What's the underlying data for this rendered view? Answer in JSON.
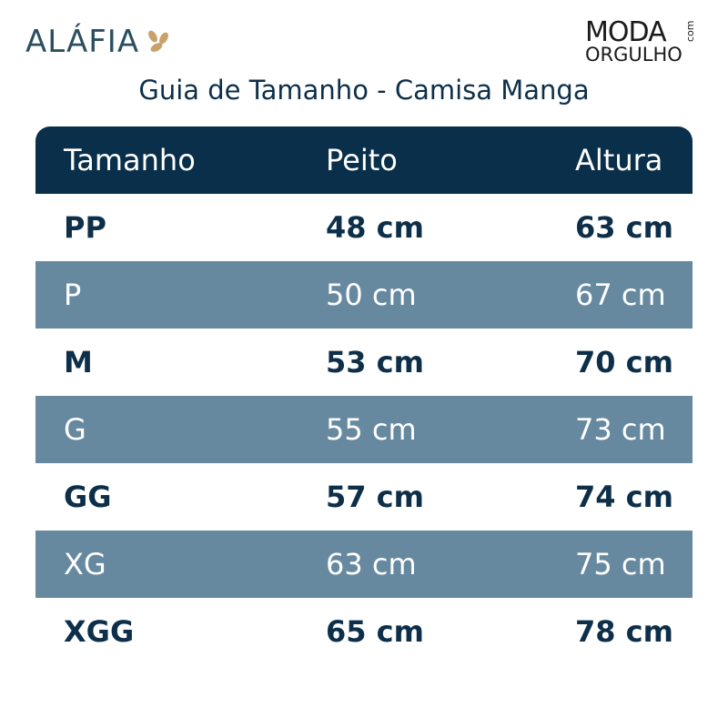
{
  "header": {
    "brand_left": "ALÁFIA",
    "brand_right_top": "MODA",
    "brand_right_small": "com",
    "brand_right_bottom": "ORGULHO"
  },
  "title": "Guia de Tamanho - Camisa Manga",
  "table": {
    "columns": [
      "Tamanho",
      "Peito",
      "Altura"
    ],
    "rows": [
      [
        "PP",
        "48 cm",
        "63 cm"
      ],
      [
        "P",
        "50 cm",
        "67 cm"
      ],
      [
        "M",
        "53 cm",
        "70 cm"
      ],
      [
        "G",
        "55 cm",
        "73 cm"
      ],
      [
        "GG",
        "57 cm",
        "74 cm"
      ],
      [
        "XG",
        "63 cm",
        "75 cm"
      ],
      [
        "XGG",
        "65 cm",
        "78 cm"
      ]
    ]
  }
}
